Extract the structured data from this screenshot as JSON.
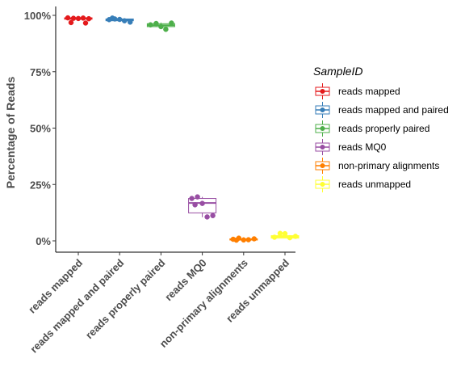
{
  "chart_data": {
    "type": "boxplot",
    "title": "",
    "xlabel": "",
    "ylabel": "Percentage of Reads",
    "ylim": [
      0,
      100
    ],
    "yticks": [
      0,
      25,
      50,
      75,
      100
    ],
    "ytick_labels": [
      "0%",
      "25%",
      "50%",
      "75%",
      "100%"
    ],
    "categories": [
      "reads mapped",
      "reads mapped and paired",
      "reads properly paired",
      "reads MQ0",
      "non-primary alignments",
      "reads unmapped"
    ],
    "legend": {
      "title": "SampleID",
      "placement": "right",
      "entries": [
        "reads mapped",
        "reads mapped and paired",
        "reads properly paired",
        "reads MQ0",
        "non-primary alignments",
        "reads unmapped"
      ]
    },
    "grid": false,
    "series": [
      {
        "name": "reads mapped",
        "color": "#E41A1C",
        "q1": 98.3,
        "median": 98.6,
        "q3": 98.9,
        "whisker_low": 98.0,
        "whisker_high": 99.0,
        "points": [
          98.9,
          98.7,
          98.6,
          98.8,
          98.5,
          96.8,
          96.6
        ]
      },
      {
        "name": "reads mapped and paired",
        "color": "#377EB8",
        "q1": 97.6,
        "median": 98.0,
        "q3": 98.4,
        "whisker_low": 97.3,
        "whisker_high": 98.8,
        "points": [
          98.1,
          98.4,
          98.2,
          97.6,
          97.0,
          98.8
        ]
      },
      {
        "name": "reads properly paired",
        "color": "#4DAF4A",
        "q1": 95.0,
        "median": 95.6,
        "q3": 96.3,
        "whisker_low": 94.5,
        "whisker_high": 96.8,
        "points": [
          95.8,
          96.4,
          95.0,
          93.8,
          96.6
        ]
      },
      {
        "name": "reads MQ0",
        "color": "#984EA3",
        "q1": 12.4,
        "median": 16.8,
        "q3": 18.8,
        "whisker_low": 10.5,
        "whisker_high": 19.5,
        "points": [
          18.8,
          19.5,
          16.6,
          10.6,
          11.2,
          16.0
        ]
      },
      {
        "name": "non-primary alignments",
        "color": "#FF7F00",
        "q1": 0.4,
        "median": 0.6,
        "q3": 0.9,
        "whisker_low": 0.1,
        "whisker_high": 1.6,
        "points": [
          0.7,
          1.2,
          0.4,
          0.5,
          0.9,
          0.3
        ]
      },
      {
        "name": "reads unmapped",
        "color": "#FFFF33",
        "q1": 1.2,
        "median": 1.8,
        "q3": 2.3,
        "whisker_low": 1.1,
        "whisker_high": 3.4,
        "points": [
          1.6,
          3.3,
          3.2,
          1.4,
          2.0
        ]
      }
    ]
  }
}
